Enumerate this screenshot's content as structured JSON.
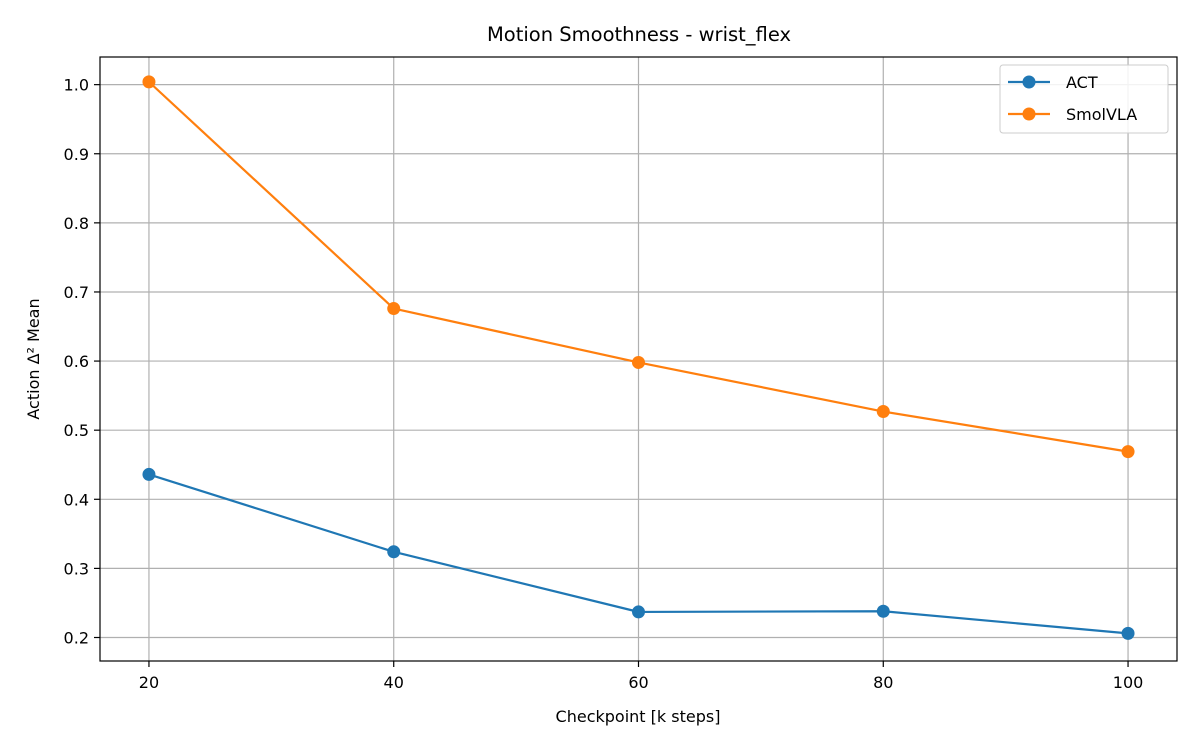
{
  "chart_data": {
    "type": "line",
    "title": "Motion Smoothness - wrist_flex",
    "xlabel": "Checkpoint [k steps]",
    "ylabel": "Action Δ² Mean",
    "x": [
      20,
      40,
      60,
      80,
      100
    ],
    "xlim": [
      16,
      104
    ],
    "ylim": [
      0.166,
      1.04
    ],
    "xticks": [
      20,
      40,
      60,
      80,
      100
    ],
    "yticks": [
      0.2,
      0.3,
      0.4,
      0.5,
      0.6,
      0.7,
      0.8,
      0.9,
      1.0
    ],
    "grid": true,
    "legend_position": "top-right",
    "series": [
      {
        "name": "ACT",
        "color": "#1f77b4",
        "values": [
          0.436,
          0.324,
          0.237,
          0.238,
          0.206
        ]
      },
      {
        "name": "SmolVLA",
        "color": "#ff7f0e",
        "values": [
          1.004,
          0.676,
          0.598,
          0.527,
          0.469
        ]
      }
    ]
  }
}
